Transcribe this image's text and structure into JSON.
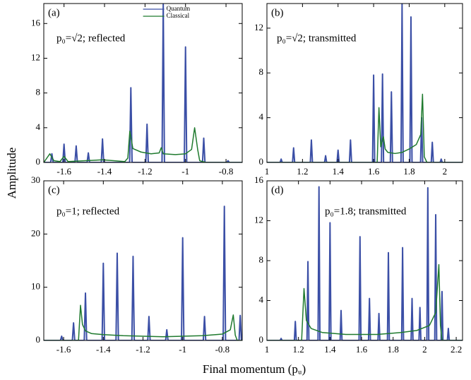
{
  "ylabel": "Amplitude",
  "xlabel": "Final momentum (pᵤ)",
  "chart_data": [
    {
      "type": "line",
      "panel": "(a)",
      "annotation": "p₀=√2; reflected",
      "xlim": [
        -1.7,
        -0.72
      ],
      "ylim": [
        0,
        18.3
      ],
      "xticks": [
        -1.6,
        -1.4,
        -1.2,
        -1,
        -0.8
      ],
      "yticks": [
        0,
        4,
        8,
        12,
        16
      ],
      "legend": "upper center",
      "series": [
        {
          "name": "Quantum",
          "color": "#3b4fa6",
          "x": [
            -1.7,
            -1.666,
            -1.66,
            -1.654,
            -1.606,
            -1.6,
            -1.594,
            -1.546,
            -1.54,
            -1.534,
            -1.486,
            -1.48,
            -1.474,
            -1.416,
            -1.41,
            -1.404,
            -1.276,
            -1.27,
            -1.264,
            -1.196,
            -1.19,
            -1.184,
            -1.116,
            -1.11,
            -1.104,
            -1.006,
            -1,
            -0.994,
            -0.916,
            -0.91,
            -0.904,
            -0.796,
            -0.79,
            -0.784,
            -0.72
          ],
          "values": [
            0,
            0,
            1.0,
            0,
            0,
            2.1,
            0,
            0,
            1.9,
            0,
            0,
            1.1,
            0,
            0,
            2.7,
            0,
            0,
            8.6,
            0,
            0,
            4.4,
            0,
            0,
            18.2,
            0,
            0,
            13.3,
            0,
            0,
            2.8,
            0,
            0,
            0.2,
            0,
            0
          ]
        },
        {
          "name": "Classical",
          "color": "#1f7a2e",
          "x": [
            -1.7,
            -1.67,
            -1.65,
            -1.62,
            -1.6,
            -1.58,
            -1.41,
            -1.3,
            -1.285,
            -1.275,
            -1.26,
            -1.22,
            -1.17,
            -1.13,
            -1.12,
            -1.11,
            -1.05,
            -1.0,
            -0.97,
            -0.955,
            -0.94,
            -0.93,
            -0.9,
            -0.72
          ],
          "values": [
            0,
            1.0,
            0.2,
            0.1,
            0.7,
            0.1,
            0.3,
            0.1,
            0.5,
            3.6,
            1.6,
            1.2,
            1.0,
            1.1,
            1.7,
            1.0,
            0.9,
            1.0,
            1.5,
            4.0,
            1.5,
            0.2,
            0,
            0
          ]
        }
      ]
    },
    {
      "type": "line",
      "panel": "(b)",
      "annotation": "p₀=√2; transmitted",
      "xlim": [
        1.0,
        2.1
      ],
      "ylim": [
        0,
        14.2
      ],
      "xticks": [
        1,
        1.2,
        1.4,
        1.6,
        1.8,
        2
      ],
      "yticks": [
        0,
        4,
        8,
        12
      ],
      "series": [
        {
          "color": "#3b4fa6",
          "x": [
            1.0,
            1.074,
            1.08,
            1.086,
            1.144,
            1.15,
            1.156,
            1.244,
            1.25,
            1.256,
            1.324,
            1.33,
            1.336,
            1.394,
            1.4,
            1.406,
            1.464,
            1.47,
            1.476,
            1.594,
            1.6,
            1.606,
            1.644,
            1.65,
            1.656,
            1.694,
            1.7,
            1.706,
            1.754,
            1.76,
            1.766,
            1.804,
            1.81,
            1.816,
            1.864,
            1.87,
            1.876,
            1.924,
            1.93,
            1.936,
            1.974,
            1.98,
            1.986,
            2.1
          ],
          "values": [
            0,
            0,
            0.3,
            0,
            0,
            1.3,
            0,
            0,
            2.0,
            0,
            0,
            0.6,
            0,
            0,
            1.1,
            0,
            0,
            2.0,
            0,
            0,
            7.8,
            0,
            0,
            7.9,
            0,
            0,
            6.3,
            0,
            0,
            14.2,
            0,
            0,
            13.0,
            0,
            0,
            4.0,
            0,
            0,
            1.8,
            0,
            0,
            0.3,
            0,
            0
          ]
        },
        {
          "color": "#1f7a2e",
          "x": [
            1.0,
            1.62,
            1.63,
            1.64,
            1.655,
            1.665,
            1.68,
            1.72,
            1.76,
            1.8,
            1.84,
            1.865,
            1.875,
            1.885,
            1.9,
            2.1
          ],
          "values": [
            0,
            0,
            4.9,
            1.4,
            2.3,
            1.2,
            0.9,
            0.8,
            0.9,
            1.2,
            1.6,
            2.5,
            6.1,
            0.5,
            0,
            0
          ]
        }
      ]
    },
    {
      "type": "line",
      "panel": "(c)",
      "annotation": "p₀=1; reflected",
      "xlim": [
        -1.7,
        -0.7
      ],
      "ylim": [
        0,
        30
      ],
      "xticks": [
        -1.6,
        -1.4,
        -1.2,
        -1,
        -0.8
      ],
      "yticks": [
        0,
        10,
        20,
        30
      ],
      "series": [
        {
          "color": "#3b4fa6",
          "x": [
            -1.7,
            -1.616,
            -1.61,
            -1.604,
            -1.556,
            -1.55,
            -1.544,
            -1.496,
            -1.49,
            -1.484,
            -1.406,
            -1.4,
            -1.394,
            -1.336,
            -1.33,
            -1.324,
            -1.256,
            -1.25,
            -1.244,
            -1.176,
            -1.17,
            -1.164,
            -1.086,
            -1.08,
            -1.074,
            -1.006,
            -1,
            -0.994,
            -0.896,
            -0.89,
            -0.884,
            -0.796,
            -0.79,
            -0.784,
            -0.716,
            -0.71,
            -0.704,
            -0.7
          ],
          "values": [
            0,
            0,
            0.8,
            0,
            0,
            3.3,
            0,
            0,
            8.9,
            0,
            0,
            14.5,
            0,
            0,
            16.4,
            0,
            0,
            15.8,
            0,
            0,
            4.5,
            0,
            0,
            2.0,
            0,
            0,
            19.3,
            0,
            0,
            4.5,
            0,
            0,
            25.2,
            0,
            0,
            4.7,
            0,
            0
          ]
        },
        {
          "color": "#1f7a2e",
          "x": [
            -1.7,
            -1.525,
            -1.515,
            -1.505,
            -1.49,
            -1.46,
            -1.4,
            -1.3,
            -1.2,
            -1.1,
            -1.0,
            -0.9,
            -0.8,
            -0.76,
            -0.745,
            -0.735,
            -0.725,
            -0.7
          ],
          "values": [
            0,
            0,
            6.6,
            3.0,
            1.8,
            1.3,
            1.1,
            0.9,
            0.8,
            0.7,
            0.8,
            0.9,
            1.2,
            2.0,
            4.8,
            1.0,
            0,
            0
          ]
        }
      ]
    },
    {
      "type": "line",
      "panel": "(d)",
      "annotation": "p₀=1.8; transmitted",
      "xlim": [
        1.0,
        2.24
      ],
      "ylim": [
        0,
        16
      ],
      "xticks": [
        1,
        1.2,
        1.4,
        1.6,
        1.8,
        2,
        2.2
      ],
      "yticks": [
        0,
        4,
        8,
        12,
        16
      ],
      "series": [
        {
          "color": "#3b4fa6",
          "x": [
            1.0,
            1.084,
            1.09,
            1.096,
            1.174,
            1.18,
            1.186,
            1.254,
            1.26,
            1.266,
            1.324,
            1.33,
            1.336,
            1.394,
            1.4,
            1.406,
            1.464,
            1.47,
            1.476,
            1.584,
            1.59,
            1.596,
            1.644,
            1.65,
            1.656,
            1.704,
            1.71,
            1.716,
            1.764,
            1.77,
            1.776,
            1.854,
            1.86,
            1.866,
            1.914,
            1.92,
            1.926,
            1.964,
            1.97,
            1.976,
            2.014,
            2.02,
            2.026,
            2.064,
            2.07,
            2.076,
            2.104,
            2.11,
            2.116,
            2.144,
            2.15,
            2.156,
            2.24
          ],
          "values": [
            0,
            0,
            0.2,
            0,
            0,
            1.9,
            0,
            0,
            7.9,
            0,
            0,
            15.4,
            0,
            0,
            11.8,
            0,
            0,
            3.0,
            0,
            0,
            10.4,
            0,
            0,
            4.2,
            0,
            0,
            2.7,
            0,
            0,
            8.8,
            0,
            0,
            9.3,
            0,
            0,
            4.2,
            0,
            0,
            3.3,
            0,
            0,
            15.3,
            0,
            0,
            12.6,
            0,
            0,
            4.9,
            0,
            0,
            1.2,
            0,
            0
          ]
        },
        {
          "color": "#1f7a2e",
          "x": [
            1.0,
            1.22,
            1.235,
            1.25,
            1.28,
            1.35,
            1.5,
            1.7,
            1.85,
            1.95,
            2.03,
            2.07,
            2.09,
            2.1,
            2.11,
            2.24
          ],
          "values": [
            0,
            0,
            5.2,
            2.0,
            1.2,
            0.8,
            0.6,
            0.6,
            0.8,
            1.0,
            1.5,
            2.8,
            7.6,
            1.5,
            0,
            0
          ]
        }
      ]
    }
  ]
}
